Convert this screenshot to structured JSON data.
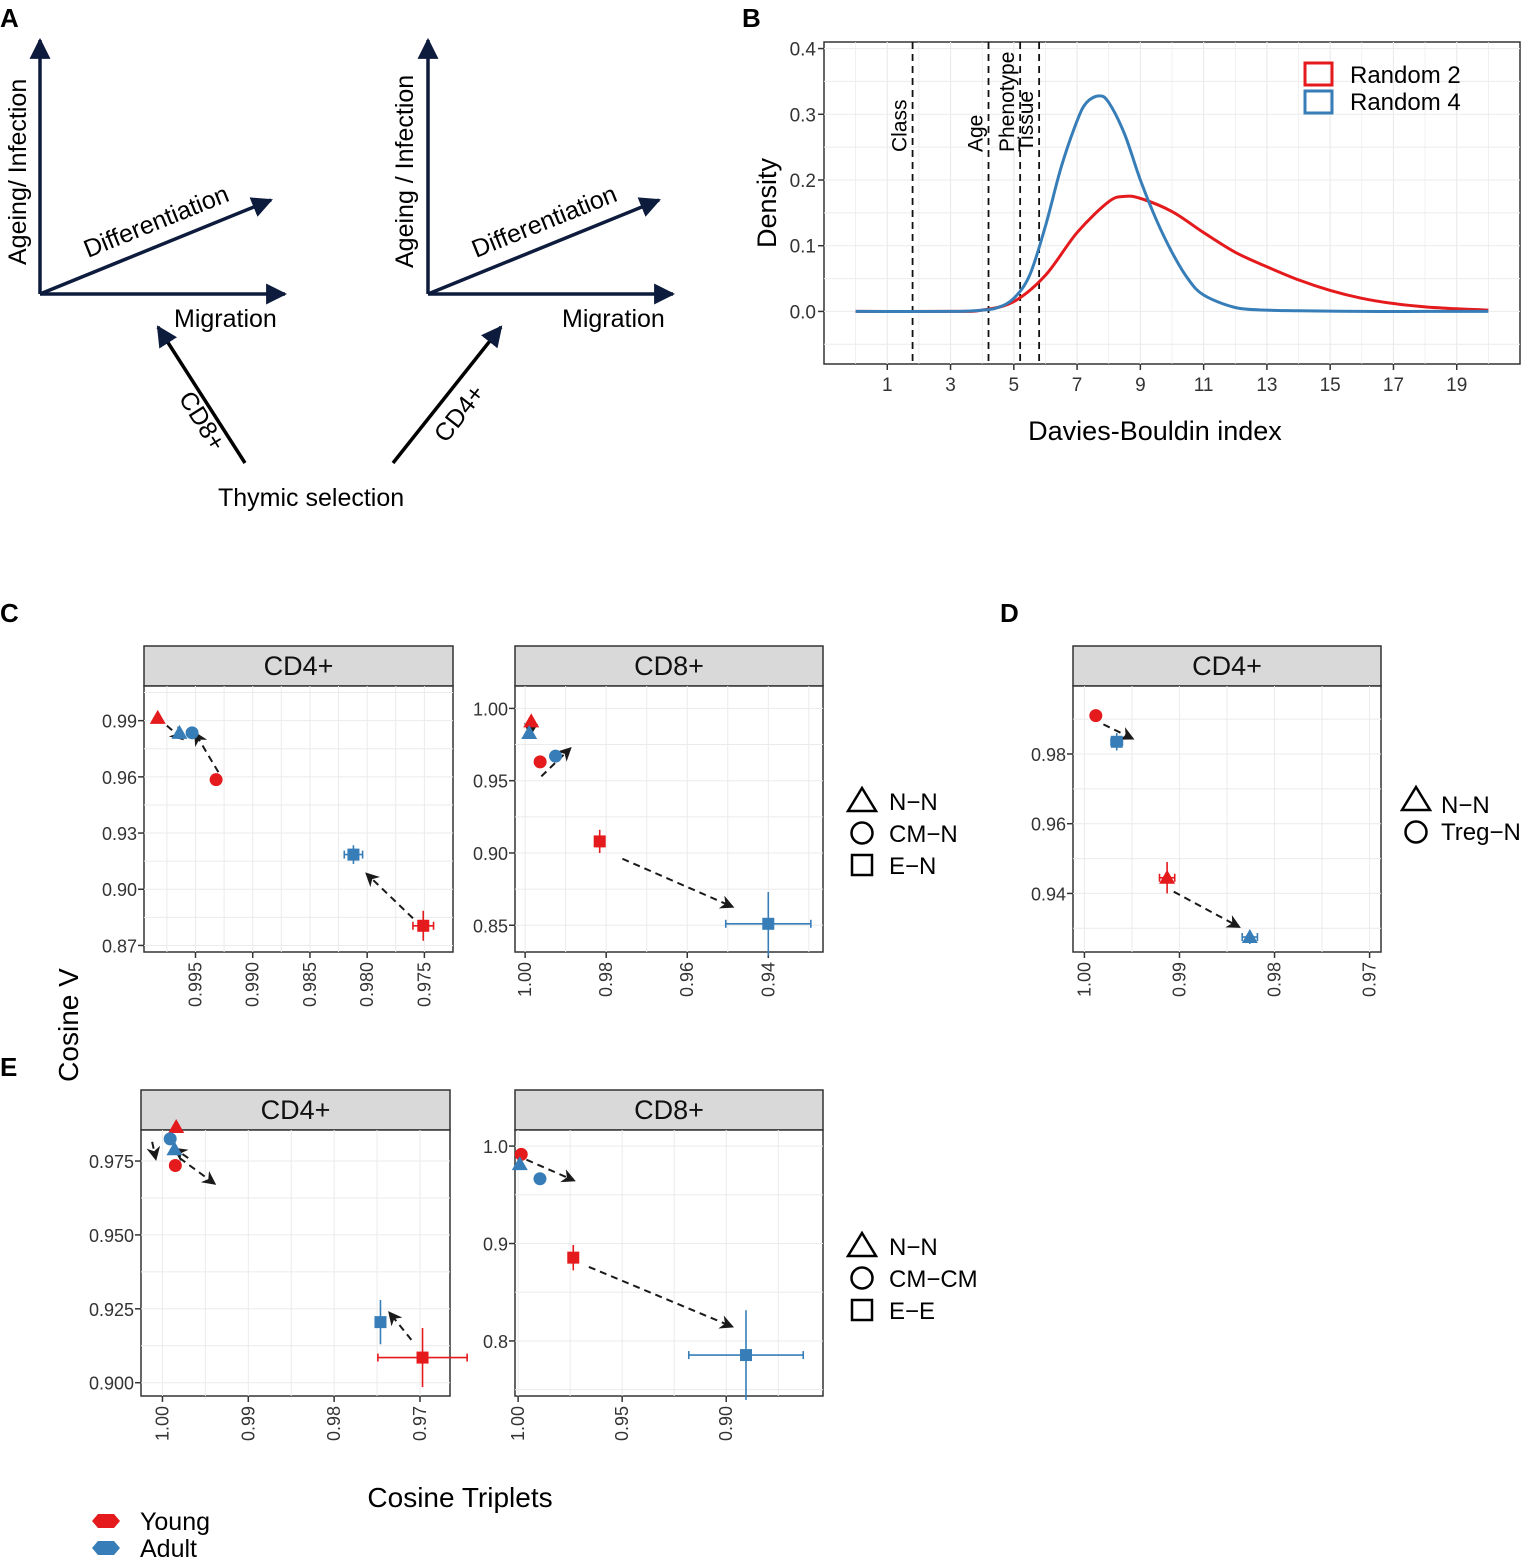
{
  "panels": {
    "A": "A",
    "B": "B",
    "C": "C",
    "D": "D",
    "E": "E"
  },
  "panel_a": {
    "y_axis": "Ageing/ Infection",
    "y_axis_2": "Ageing / Infection",
    "diag_axis": "Differentiation",
    "x_axis": "Migration",
    "cd8_arrow": "CD8+",
    "cd4_arrow": "CD4+",
    "base": "Thymic selection"
  },
  "shared": {
    "ylabel": "Cosine V",
    "xlabel": "Cosine Triplets",
    "legend_young": "Young",
    "legend_adult": "Adult"
  },
  "chart_data": [
    {
      "id": "B",
      "type": "line",
      "title": "",
      "xlabel": "Davies-Bouldin index",
      "ylabel": "Density",
      "xlim": [
        -1,
        21
      ],
      "ylim": [
        -0.08,
        0.41
      ],
      "xticks": [
        1,
        3,
        5,
        7,
        9,
        11,
        13,
        15,
        17,
        19
      ],
      "yticks": [
        0.0,
        0.1,
        0.2,
        0.3,
        0.4
      ],
      "ytick_labels": [
        "0.0",
        "0.1",
        "0.2",
        "0.3",
        "0.4"
      ],
      "vlines": [
        {
          "x": 1.8,
          "label": "Class"
        },
        {
          "x": 4.2,
          "label": "Age"
        },
        {
          "x": 5.2,
          "label": "Phenotype"
        },
        {
          "x": 5.8,
          "label": "Tissue"
        }
      ],
      "series": [
        {
          "name": "Random 2",
          "color": "#e41a1c",
          "x": [
            0,
            3,
            4,
            5,
            6,
            7,
            8,
            8.5,
            9,
            10,
            11,
            12,
            13,
            14,
            15,
            16,
            17,
            18,
            19,
            20
          ],
          "y": [
            0,
            0,
            0.002,
            0.015,
            0.055,
            0.12,
            0.167,
            0.175,
            0.172,
            0.152,
            0.12,
            0.09,
            0.068,
            0.048,
            0.032,
            0.02,
            0.012,
            0.007,
            0.004,
            0.002
          ]
        },
        {
          "name": "Random 4",
          "color": "#377eb8",
          "x": [
            0,
            3,
            4,
            4.5,
            5,
            5.5,
            6,
            6.5,
            7,
            7.3,
            7.7,
            8,
            8.5,
            9,
            9.5,
            10,
            10.5,
            11,
            12,
            13,
            14,
            16,
            18,
            20
          ],
          "y": [
            0,
            0,
            0.002,
            0.006,
            0.02,
            0.055,
            0.13,
            0.22,
            0.29,
            0.318,
            0.328,
            0.318,
            0.27,
            0.2,
            0.14,
            0.09,
            0.05,
            0.025,
            0.006,
            0.002,
            0.001,
            0,
            0,
            0
          ]
        }
      ],
      "legend": "top-right"
    },
    {
      "id": "C-CD4",
      "type": "scatter",
      "title": "CD4+",
      "xlim": [
        0.9995,
        0.9725
      ],
      "ylim": [
        0.8665,
        1.0085
      ],
      "xticks": [
        0.995,
        0.99,
        0.985,
        0.98,
        0.975
      ],
      "xtick_labels": [
        "0.995",
        "0.990",
        "0.985",
        "0.980",
        "0.975"
      ],
      "yticks": [
        0.87,
        0.9,
        0.93,
        0.96,
        0.99
      ],
      "ytick_labels": [
        "0.87",
        "0.90",
        "0.93",
        "0.96",
        "0.99"
      ],
      "points": [
        {
          "group": "Young",
          "shape": "triangle",
          "x": 0.9983,
          "y": 0.9915
        },
        {
          "group": "Adult",
          "shape": "triangle",
          "x": 0.9964,
          "y": 0.9835
        },
        {
          "group": "Adult",
          "shape": "circle",
          "x": 0.9953,
          "y": 0.9835
        },
        {
          "group": "Young",
          "shape": "circle",
          "x": 0.9932,
          "y": 0.9585
        },
        {
          "group": "Adult",
          "shape": "square",
          "x": 0.9812,
          "y": 0.9185,
          "xerr": 0.0008,
          "yerr": 0.005
        },
        {
          "group": "Young",
          "shape": "square",
          "x": 0.9751,
          "y": 0.8805,
          "xerr": 0.0009,
          "yerr": 0.008
        }
      ],
      "arrows": [
        {
          "from": [
            0.9983,
            0.9915
          ],
          "to": [
            0.9962,
            0.9805
          ]
        },
        {
          "from": [
            0.993,
            0.9625
          ],
          "to": [
            0.995,
            0.983
          ]
        },
        {
          "from": [
            0.976,
            0.8845
          ],
          "to": [
            0.98,
            0.908
          ]
        }
      ]
    },
    {
      "id": "C-CD8",
      "type": "scatter",
      "title": "CD8+",
      "xlim": [
        1.0025,
        0.9265
      ],
      "ylim": [
        0.8315,
        1.0155
      ],
      "xticks": [
        1.0,
        0.98,
        0.96,
        0.94
      ],
      "xtick_labels": [
        "1.00",
        "0.98",
        "0.96",
        "0.94"
      ],
      "yticks": [
        0.85,
        0.9,
        0.95,
        1.0
      ],
      "ytick_labels": [
        "0.85",
        "0.90",
        "0.95",
        "1.00"
      ],
      "points": [
        {
          "group": "Young",
          "shape": "triangle",
          "x": 0.9985,
          "y": 0.991
        },
        {
          "group": "Adult",
          "shape": "triangle",
          "x": 0.999,
          "y": 0.983
        },
        {
          "group": "Young",
          "shape": "circle",
          "x": 0.9963,
          "y": 0.963
        },
        {
          "group": "Adult",
          "shape": "circle",
          "x": 0.9925,
          "y": 0.967
        },
        {
          "group": "Young",
          "shape": "square",
          "x": 0.9816,
          "y": 0.908,
          "xerr": 0.001,
          "yerr": 0.008
        },
        {
          "group": "Adult",
          "shape": "square",
          "x": 0.94,
          "y": 0.851,
          "xerr": 0.0105,
          "yerr": 0.022
        }
      ],
      "arrows": [
        {
          "from": [
            0.9985,
            0.991
          ],
          "to": [
            0.9988,
            0.982
          ]
        },
        {
          "from": [
            0.996,
            0.953
          ],
          "to": [
            0.989,
            0.972
          ]
        },
        {
          "from": [
            0.976,
            0.896
          ],
          "to": [
            0.949,
            0.863
          ]
        }
      ]
    },
    {
      "id": "D-CD4",
      "type": "scatter",
      "title": "CD4+",
      "xlim": [
        1.0012,
        0.9688
      ],
      "ylim": [
        0.9232,
        0.9995
      ],
      "xticks": [
        1.0,
        0.99,
        0.98,
        0.97
      ],
      "xtick_labels": [
        "1.00",
        "0.99",
        "0.98",
        "0.97"
      ],
      "yticks": [
        0.94,
        0.96,
        0.98
      ],
      "ytick_labels": [
        "0.94",
        "0.96",
        "0.98"
      ],
      "points": [
        {
          "group": "Young",
          "shape": "circle",
          "x": 0.9988,
          "y": 0.991
        },
        {
          "group": "Adult",
          "shape": "square",
          "x": 0.9966,
          "y": 0.9835,
          "xerr": 0.0006,
          "yerr": 0.0025
        },
        {
          "group": "Young",
          "shape": "triangle",
          "x": 0.9913,
          "y": 0.9445,
          "xerr": 0.0008,
          "yerr": 0.0045
        },
        {
          "group": "Adult",
          "shape": "triangle",
          "x": 0.9826,
          "y": 0.9275,
          "xerr": 0.0008,
          "yerr": 0.002
        }
      ],
      "arrows": [
        {
          "from": [
            0.998,
            0.9885
          ],
          "to": [
            0.995,
            0.9845
          ]
        },
        {
          "from": [
            0.9906,
            0.9405
          ],
          "to": [
            0.9838,
            0.9305
          ]
        }
      ]
    },
    {
      "id": "E-CD4",
      "type": "scatter",
      "title": "CD4+",
      "xlim": [
        1.0025,
        0.9665
      ],
      "ylim": [
        0.8955,
        0.9855
      ],
      "xticks": [
        1.0,
        0.99,
        0.98,
        0.97
      ],
      "xtick_labels": [
        "1.00",
        "0.99",
        "0.98",
        "0.97"
      ],
      "yticks": [
        0.9,
        0.925,
        0.95,
        0.975
      ],
      "ytick_labels": [
        "0.900",
        "0.925",
        "0.950",
        "0.975"
      ],
      "points": [
        {
          "group": "Young",
          "shape": "triangle",
          "x": 0.9984,
          "y": 0.9865
        },
        {
          "group": "Adult",
          "shape": "circle",
          "x": 0.9991,
          "y": 0.9825
        },
        {
          "group": "Adult",
          "shape": "triangle",
          "x": 0.9986,
          "y": 0.979
        },
        {
          "group": "Young",
          "shape": "circle",
          "x": 0.9985,
          "y": 0.9735
        },
        {
          "group": "Adult",
          "shape": "square",
          "x": 0.9746,
          "y": 0.9205,
          "yerr": 0.0075
        },
        {
          "group": "Young",
          "shape": "square",
          "x": 0.9697,
          "y": 0.9085,
          "xerr": 0.0052,
          "yerr": 0.01
        }
      ],
      "arrows": [
        {
          "from": [
            1.0012,
            0.9815
          ],
          "to": [
            1.0008,
            0.976
          ]
        },
        {
          "from": [
            0.997,
            0.976
          ],
          "to": [
            0.9985,
            0.979
          ]
        },
        {
          "from": [
            0.998,
            0.976
          ],
          "to": [
            0.994,
            0.9675
          ]
        },
        {
          "from": [
            0.971,
            0.9145
          ],
          "to": [
            0.9735,
            0.9235
          ]
        }
      ]
    },
    {
      "id": "E-CD8",
      "type": "scatter",
      "title": "CD8+",
      "xlim": [
        1.0015,
        0.8535
      ],
      "ylim": [
        0.7435,
        1.0165
      ],
      "xticks": [
        1.0,
        0.95,
        0.9
      ],
      "xtick_labels": [
        "1.00",
        "0.95",
        "0.90"
      ],
      "yticks": [
        0.8,
        0.9,
        1.0
      ],
      "ytick_labels": [
        "0.8",
        "0.9",
        "1.0"
      ],
      "points": [
        {
          "group": "Young",
          "shape": "circle",
          "x": 0.9985,
          "y": 0.9915
        },
        {
          "group": "Adult",
          "shape": "triangle",
          "x": 0.9992,
          "y": 0.9815
        },
        {
          "group": "Adult",
          "shape": "circle",
          "x": 0.9895,
          "y": 0.9665
        },
        {
          "group": "Young",
          "shape": "square",
          "x": 0.9735,
          "y": 0.8855,
          "xerr": 0.0012,
          "yerr": 0.013
        },
        {
          "group": "Adult",
          "shape": "square",
          "x": 0.8905,
          "y": 0.7855,
          "xerr": 0.0275,
          "yerr": 0.046
        }
      ],
      "arrows": [
        {
          "from": [
            0.996,
            0.986
          ],
          "to": [
            0.9735,
            0.965
          ]
        },
        {
          "from": [
            0.966,
            0.876
          ],
          "to": [
            0.8975,
            0.815
          ]
        }
      ]
    }
  ],
  "legends": {
    "C": [
      "N−N",
      "CM−N",
      "E−N"
    ],
    "D": [
      "N−N",
      "Treg−N"
    ],
    "E": [
      "N−N",
      "CM−CM",
      "E−E"
    ]
  },
  "colors": {
    "young": "#e41a1c",
    "adult": "#377eb8",
    "strip": "#d9d9d9",
    "grid": "#ebebeb",
    "axis": "#222222",
    "arrow": "#1a1a2e"
  }
}
